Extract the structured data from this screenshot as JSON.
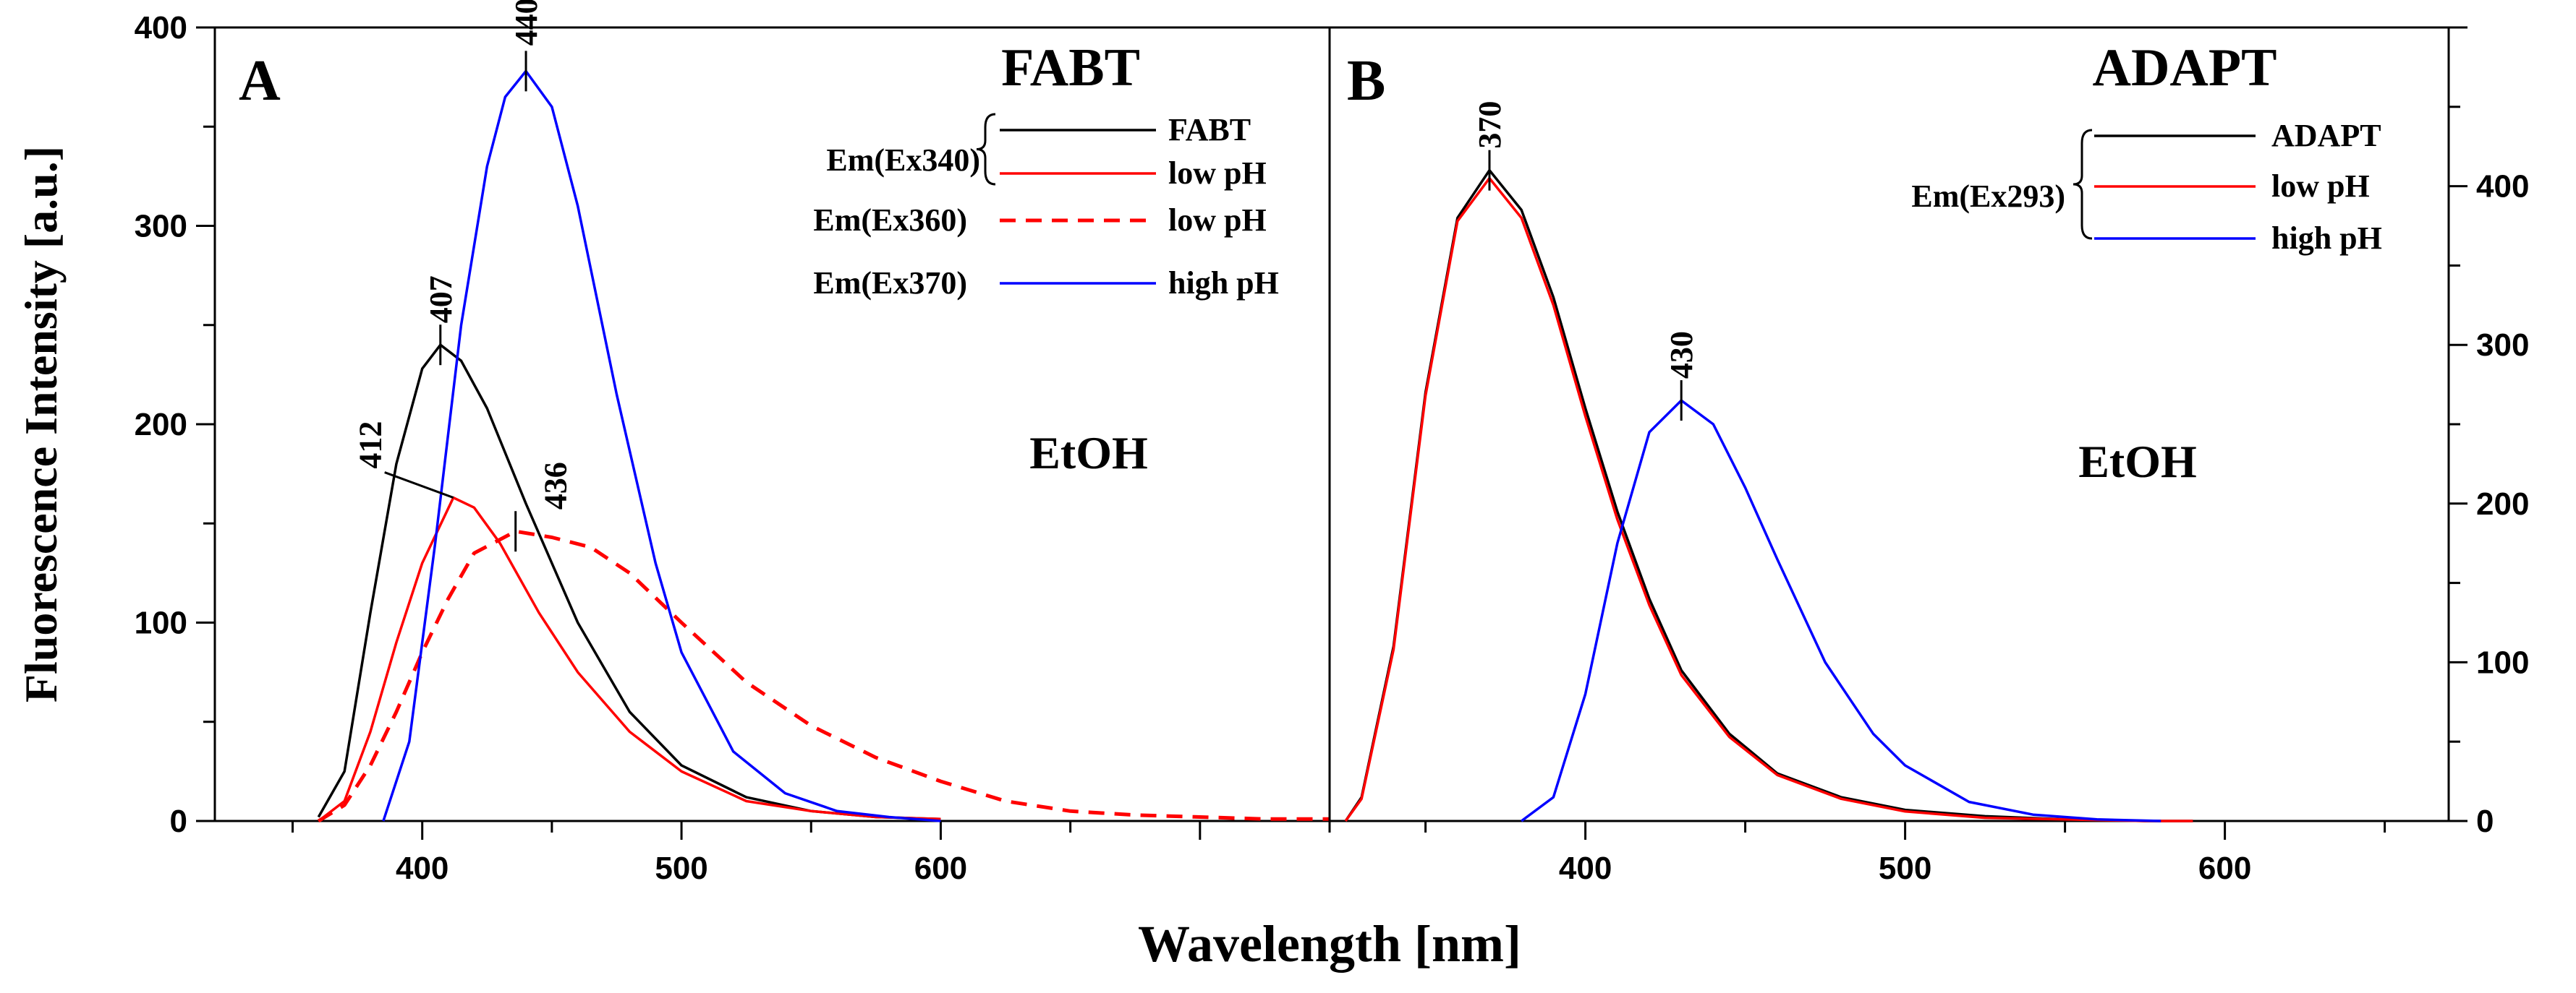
{
  "y_axis_label": "Fluorescence Intensity [a.u.]",
  "x_axis_label": "Wavelength [nm]",
  "chart_data": [
    {
      "type": "line",
      "panel": "A",
      "title": "FABT",
      "solvent": "EtOH",
      "xlim": [
        320,
        750
      ],
      "ylim": [
        0,
        400
      ],
      "x_ticks": [
        400,
        500,
        600
      ],
      "y_ticks": [
        0,
        100,
        200,
        300,
        400
      ],
      "legend_placement": "top-right",
      "legend_groups": [
        {
          "label": "Em(Ex340)",
          "brace": true,
          "entries": [
            "FABT",
            "low pH"
          ]
        },
        {
          "label": "Em(Ex360)",
          "brace": false,
          "entries": [
            "low pH"
          ]
        },
        {
          "label": "Em(Ex370)",
          "brace": false,
          "entries": [
            "high pH"
          ]
        }
      ],
      "series": [
        {
          "name": "FABT",
          "color": "#000000",
          "style": "solid",
          "x": [
            360,
            370,
            380,
            390,
            400,
            407,
            415,
            425,
            440,
            460,
            480,
            500,
            525,
            550,
            575,
            600
          ],
          "y": [
            2,
            25,
            105,
            180,
            228,
            240,
            232,
            208,
            160,
            100,
            55,
            28,
            12,
            5,
            2,
            1
          ]
        },
        {
          "name": "low pH",
          "color": "#ff0000",
          "style": "solid",
          "x": [
            360,
            370,
            380,
            390,
            400,
            412,
            420,
            430,
            445,
            460,
            480,
            500,
            525,
            550,
            575,
            600
          ],
          "y": [
            0,
            10,
            45,
            90,
            130,
            163,
            158,
            140,
            105,
            75,
            45,
            25,
            10,
            5,
            2,
            1
          ]
        },
        {
          "name": "low pH",
          "color": "#ff0000",
          "style": "dashed",
          "x": [
            360,
            370,
            380,
            390,
            400,
            410,
            420,
            436,
            450,
            465,
            480,
            500,
            525,
            550,
            575,
            600,
            625,
            650,
            675,
            700,
            725,
            750
          ],
          "y": [
            0,
            8,
            28,
            55,
            85,
            112,
            135,
            146,
            143,
            138,
            125,
            100,
            70,
            48,
            32,
            20,
            10,
            5,
            3,
            2,
            1,
            1
          ]
        },
        {
          "name": "high pH",
          "color": "#0000ff",
          "style": "solid",
          "x": [
            385,
            395,
            405,
            415,
            425,
            432,
            440,
            450,
            460,
            475,
            490,
            500,
            520,
            540,
            560,
            580,
            600
          ],
          "y": [
            0,
            40,
            140,
            250,
            330,
            365,
            378,
            360,
            310,
            215,
            130,
            85,
            35,
            14,
            5,
            2,
            0
          ]
        }
      ],
      "peak_labels": [
        {
          "text": "407",
          "x": 407,
          "y": 240
        },
        {
          "text": "412",
          "x": 412,
          "y": 163
        },
        {
          "text": "436",
          "x": 436,
          "y": 146
        },
        {
          "text": "440",
          "x": 440,
          "y": 378
        }
      ]
    },
    {
      "type": "line",
      "panel": "B",
      "title": "ADAPT",
      "solvent": "EtOH",
      "xlim": [
        320,
        670
      ],
      "ylim": [
        0,
        500
      ],
      "x_ticks": [
        400,
        500,
        600
      ],
      "y_ticks": [
        0,
        100,
        200,
        300,
        400
      ],
      "y_axis_side": "right",
      "legend_placement": "top-right",
      "legend_groups": [
        {
          "label": "Em(Ex293)",
          "brace": true,
          "entries": [
            "ADAPT",
            "low pH",
            "high pH"
          ]
        }
      ],
      "series": [
        {
          "name": "ADAPT",
          "color": "#000000",
          "style": "solid",
          "x": [
            325,
            330,
            340,
            350,
            360,
            370,
            380,
            390,
            400,
            410,
            420,
            430,
            445,
            460,
            480,
            500,
            525,
            550,
            575,
            590
          ],
          "y": [
            0,
            15,
            110,
            270,
            380,
            410,
            385,
            330,
            260,
            195,
            140,
            95,
            55,
            30,
            15,
            7,
            3,
            1,
            0,
            0
          ]
        },
        {
          "name": "low pH",
          "color": "#ff0000",
          "style": "solid",
          "x": [
            325,
            330,
            340,
            350,
            360,
            370,
            380,
            390,
            400,
            410,
            420,
            430,
            445,
            460,
            480,
            500,
            525,
            550,
            575,
            590
          ],
          "y": [
            0,
            14,
            108,
            268,
            378,
            405,
            380,
            325,
            255,
            190,
            136,
            92,
            53,
            29,
            14,
            6,
            2,
            1,
            0,
            0
          ]
        },
        {
          "name": "high pH",
          "color": "#0000ff",
          "style": "solid",
          "x": [
            380,
            390,
            400,
            410,
            420,
            430,
            440,
            450,
            460,
            475,
            490,
            500,
            520,
            540,
            560,
            580
          ],
          "y": [
            0,
            15,
            80,
            175,
            245,
            265,
            250,
            210,
            165,
            100,
            55,
            35,
            12,
            4,
            1,
            0
          ]
        }
      ],
      "peak_labels": [
        {
          "text": "370",
          "x": 370,
          "y": 410
        },
        {
          "text": "430",
          "x": 430,
          "y": 265
        }
      ]
    }
  ]
}
